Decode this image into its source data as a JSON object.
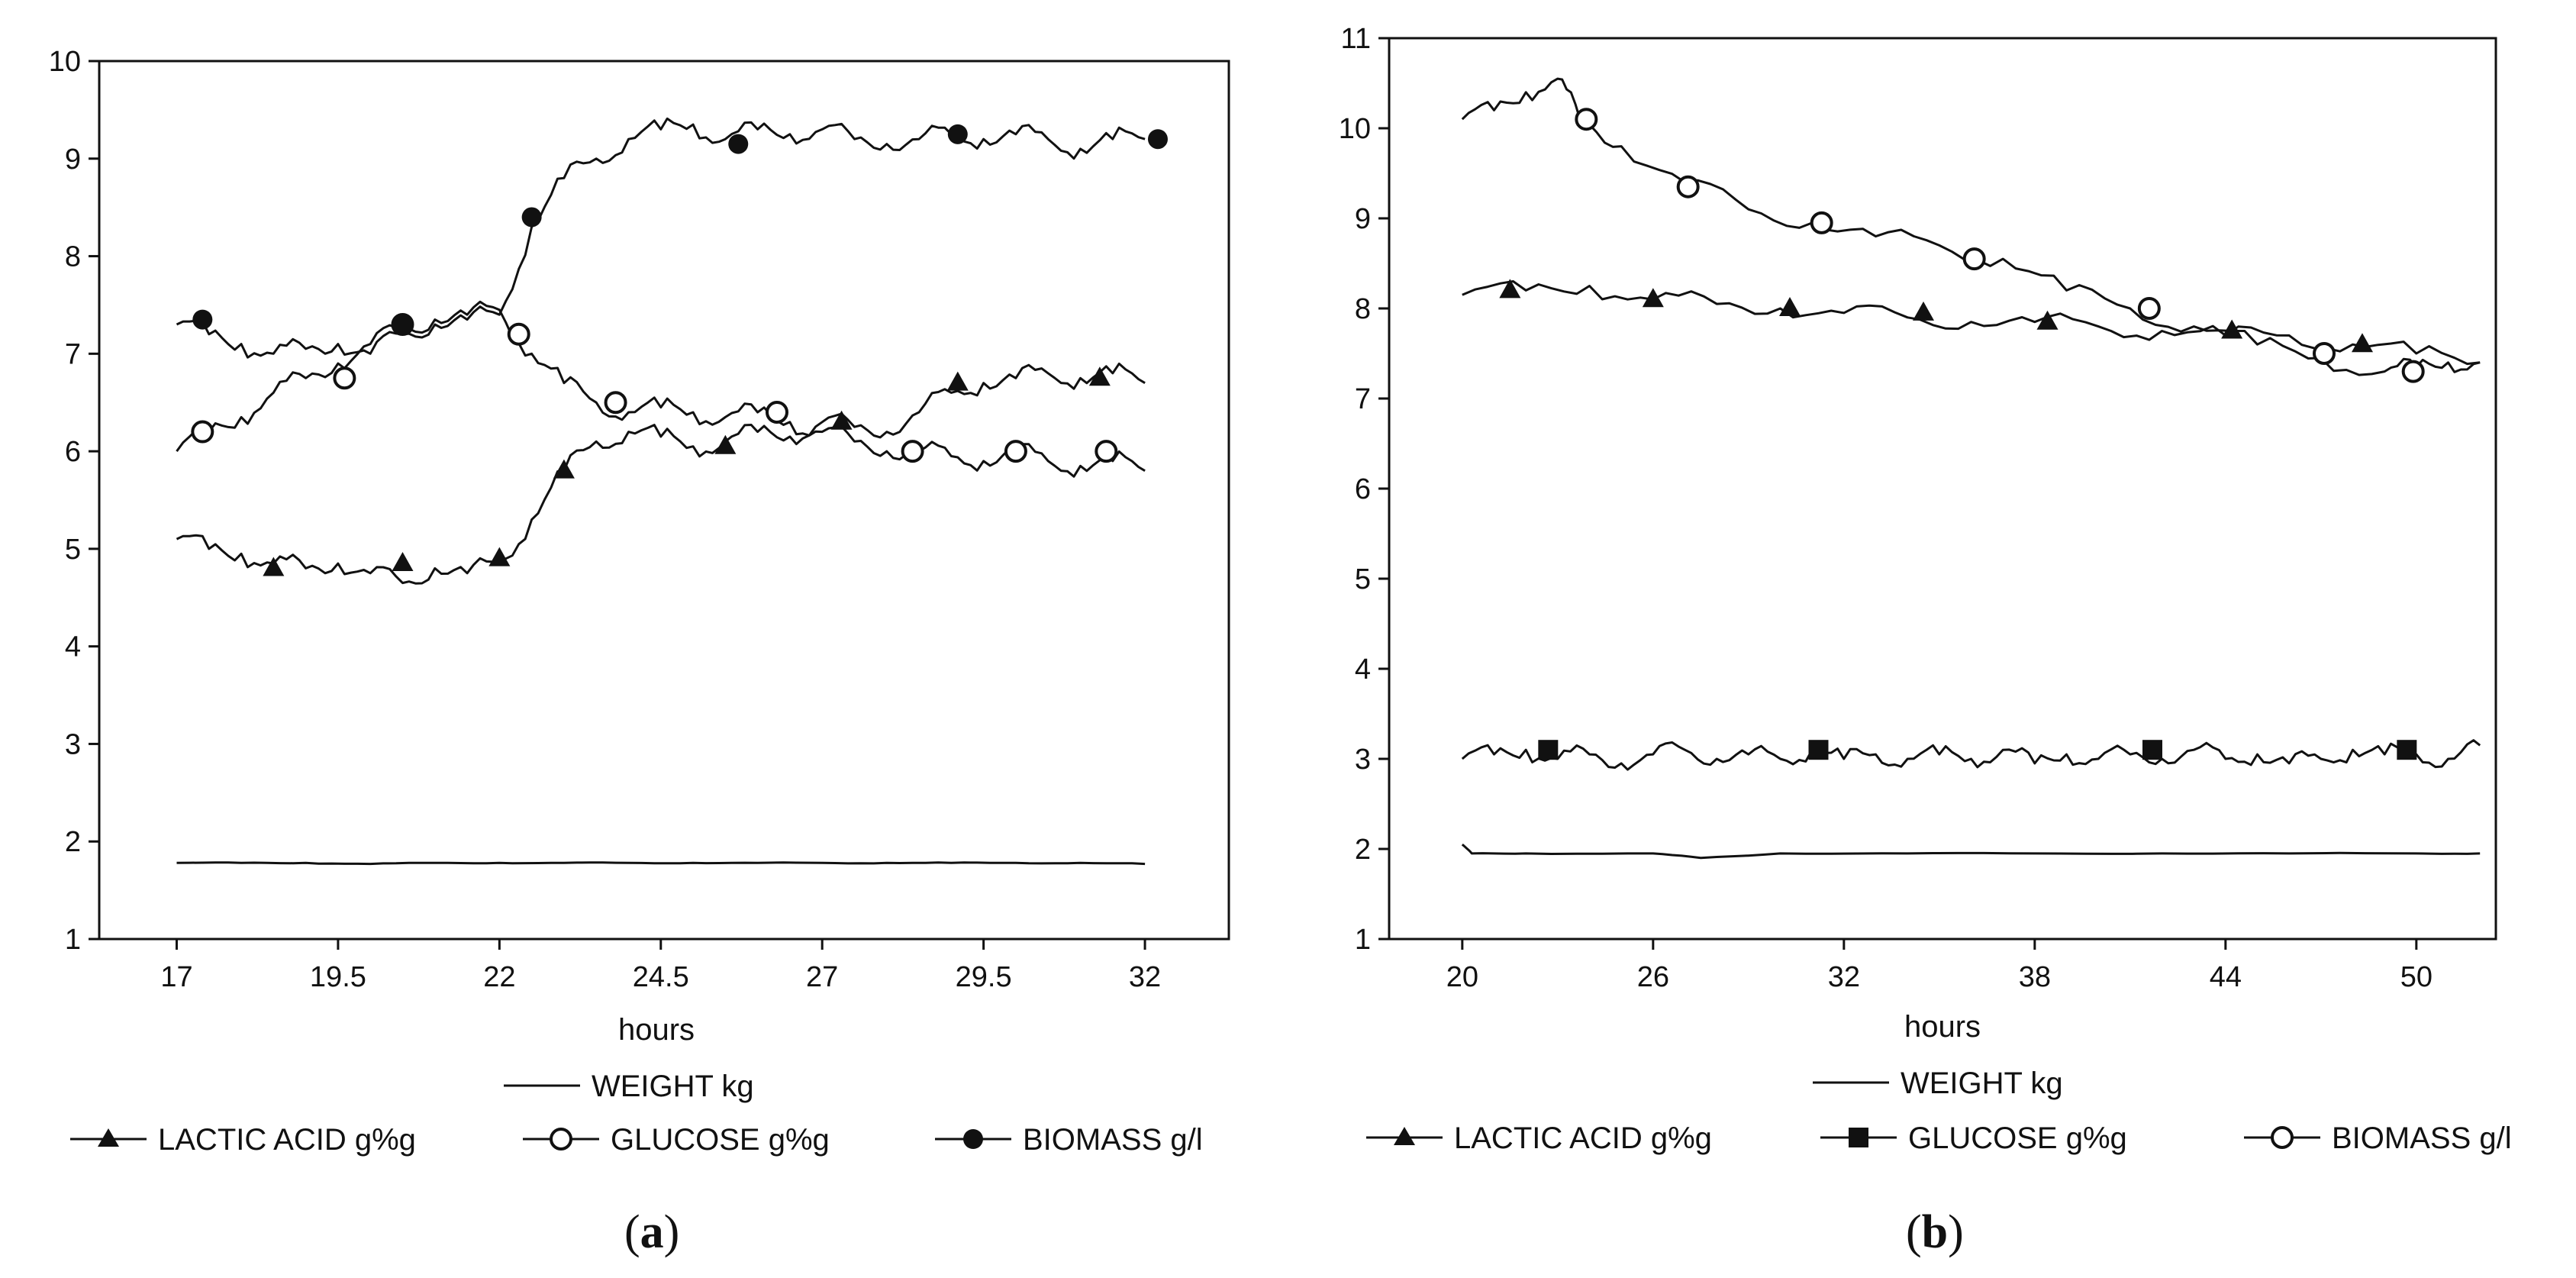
{
  "figure": {
    "panel_labels": {
      "a": "a",
      "b": "b"
    }
  },
  "chart_data": [
    {
      "type": "line",
      "panel": "a",
      "xlabel": "hours",
      "ylabel": "",
      "xlim": [
        15.8,
        33.3
      ],
      "ylim": [
        1,
        10
      ],
      "xticks": [
        17,
        19.5,
        22,
        24.5,
        27,
        29.5,
        32
      ],
      "xtick_labels": [
        "17",
        "19.5",
        "22",
        "24.5",
        "27",
        "29.5",
        "32"
      ],
      "yticks": [
        1,
        2,
        3,
        4,
        5,
        6,
        7,
        8,
        9,
        10
      ],
      "grid": false,
      "legend_placement": "bottom",
      "series": [
        {
          "key": "weight",
          "name": "WEIGHT kg",
          "color": "#111111",
          "marker": "none",
          "x": [
            17,
            18,
            19,
            20,
            21,
            22,
            23,
            24,
            25,
            26,
            27,
            28,
            29,
            30,
            31,
            32
          ],
          "y": [
            1.78,
            1.78,
            1.78,
            1.77,
            1.78,
            1.78,
            1.78,
            1.78,
            1.78,
            1.78,
            1.78,
            1.78,
            1.78,
            1.78,
            1.78,
            1.77
          ]
        },
        {
          "key": "lactic",
          "name": "LACTIC ACID g%g",
          "color": "#111111",
          "marker": "filled-triangle",
          "x": [
            17,
            17.5,
            18,
            18.5,
            19,
            19.5,
            20,
            20.5,
            21,
            21.5,
            22,
            22.5,
            23,
            23.5,
            24,
            24.5,
            25,
            25.5,
            26,
            26.5,
            27,
            27.5,
            28,
            28.5,
            29,
            29.5,
            30,
            30.5,
            31,
            31.5,
            32
          ],
          "y": [
            5.1,
            5.0,
            4.95,
            4.85,
            4.8,
            4.85,
            4.75,
            4.65,
            4.8,
            4.75,
            4.85,
            5.3,
            5.8,
            6.1,
            6.2,
            6.15,
            6.05,
            6.1,
            6.2,
            6.15,
            6.3,
            6.25,
            6.2,
            6.4,
            6.6,
            6.7,
            6.75,
            6.8,
            6.75,
            6.8,
            6.7
          ],
          "marker_points": {
            "x": [
              18.5,
              20.5,
              22,
              23,
              25.5,
              27.3,
              29.1,
              31.3
            ],
            "y": [
              4.8,
              4.85,
              4.9,
              5.8,
              6.05,
              6.3,
              6.7,
              6.75
            ]
          }
        },
        {
          "key": "glucose",
          "name": "GLUCOSE g%g",
          "color": "#111111",
          "marker": "open-circle",
          "x": [
            17,
            17.5,
            18,
            18.5,
            19,
            19.5,
            20,
            20.5,
            21,
            21.5,
            22,
            22.5,
            23,
            23.5,
            24,
            24.5,
            25,
            25.5,
            26,
            26.5,
            27,
            27.5,
            28,
            28.5,
            29,
            29.5,
            30,
            30.5,
            31,
            31.5,
            32
          ],
          "y": [
            6.0,
            6.2,
            6.35,
            6.6,
            6.75,
            6.9,
            7.1,
            7.25,
            7.35,
            7.4,
            7.45,
            7.0,
            6.7,
            6.5,
            6.4,
            6.45,
            6.4,
            6.35,
            6.4,
            6.3,
            6.2,
            6.1,
            6.0,
            6.0,
            5.95,
            5.9,
            6.0,
            5.9,
            5.85,
            5.9,
            5.8
          ],
          "marker_points": {
            "x": [
              17.4,
              19.6,
              20.5,
              22.3,
              23.8,
              26.3,
              28.4,
              30,
              31.4
            ],
            "y": [
              6.2,
              6.75,
              7.3,
              7.2,
              6.5,
              6.4,
              6.0,
              6.0,
              6.0
            ]
          }
        },
        {
          "key": "biomass",
          "name": "BIOMASS g/l",
          "color": "#111111",
          "marker": "filled-circle",
          "x": [
            17,
            17.5,
            18,
            18.5,
            19,
            19.5,
            20,
            20.5,
            21,
            21.5,
            22,
            22.5,
            23,
            23.5,
            24,
            24.5,
            25,
            25.5,
            26,
            26.5,
            27,
            27.5,
            28,
            28.5,
            29,
            29.5,
            30,
            30.5,
            31,
            31.5,
            32
          ],
          "y": [
            7.3,
            7.2,
            7.1,
            7.0,
            7.05,
            7.1,
            7.0,
            7.2,
            7.3,
            7.35,
            7.4,
            8.3,
            8.8,
            9.0,
            9.2,
            9.3,
            9.35,
            9.2,
            9.3,
            9.25,
            9.3,
            9.2,
            9.15,
            9.2,
            9.25,
            9.2,
            9.25,
            9.2,
            9.1,
            9.2,
            9.2
          ],
          "marker_points": {
            "x": [
              17.4,
              20.5,
              22.5,
              25.7,
              29.1,
              32.2
            ],
            "y": [
              7.35,
              7.3,
              8.4,
              9.15,
              9.25,
              9.2
            ]
          }
        }
      ]
    },
    {
      "type": "line",
      "panel": "b",
      "xlabel": "hours",
      "ylabel": "",
      "xlim": [
        17.7,
        52.5
      ],
      "ylim": [
        1,
        11
      ],
      "xticks": [
        20,
        26,
        32,
        38,
        44,
        50
      ],
      "xtick_labels": [
        "20",
        "26",
        "32",
        "38",
        "44",
        "50"
      ],
      "yticks": [
        1,
        2,
        3,
        4,
        5,
        6,
        7,
        8,
        9,
        10,
        11
      ],
      "grid": false,
      "legend_placement": "bottom",
      "series": [
        {
          "key": "weight",
          "name": "WEIGHT kg",
          "color": "#111111",
          "marker": "none",
          "x": [
            20,
            20.3,
            22,
            26,
            27.5,
            30,
            34,
            38,
            42,
            46,
            50,
            52
          ],
          "y": [
            2.05,
            1.95,
            1.95,
            1.95,
            1.9,
            1.95,
            1.95,
            1.95,
            1.95,
            1.95,
            1.95,
            1.95
          ]
        },
        {
          "key": "glucose",
          "name": "GLUCOSE g%g",
          "color": "#111111",
          "marker": "filled-square",
          "x": [
            20,
            21,
            22,
            23,
            24,
            25,
            26,
            27,
            28,
            29,
            30,
            31,
            32,
            33,
            34,
            35,
            36,
            37,
            38,
            39,
            40,
            41,
            42,
            43,
            44,
            45,
            46,
            47,
            48,
            49,
            50,
            51,
            52
          ],
          "y": [
            3.0,
            3.05,
            3.1,
            3.0,
            3.05,
            2.95,
            3.05,
            3.1,
            3.0,
            3.05,
            3.0,
            3.1,
            3.0,
            3.05,
            3.0,
            3.05,
            3.0,
            3.1,
            2.95,
            3.05,
            3.0,
            3.05,
            3.0,
            3.1,
            3.0,
            3.05,
            2.95,
            3.0,
            3.1,
            3.05,
            3.05,
            3.0,
            3.15
          ],
          "marker_points": {
            "x": [
              22.7,
              31.2,
              41.7,
              49.7
            ],
            "y": [
              3.1,
              3.1,
              3.1,
              3.1
            ]
          }
        },
        {
          "key": "lactic",
          "name": "LACTIC ACID g%g",
          "color": "#111111",
          "marker": "filled-triangle",
          "x": [
            20,
            22,
            24,
            26,
            28,
            30,
            32,
            34,
            36,
            38,
            40,
            42,
            44,
            46,
            48,
            50,
            52
          ],
          "y": [
            8.15,
            8.2,
            8.25,
            8.1,
            8.05,
            8.0,
            7.95,
            7.9,
            7.85,
            7.85,
            7.8,
            7.75,
            7.7,
            7.7,
            7.6,
            7.5,
            7.4
          ],
          "marker_points": {
            "x": [
              21.5,
              26,
              30.3,
              34.5,
              38.4,
              44.2,
              48.3
            ],
            "y": [
              8.2,
              8.1,
              8.0,
              7.95,
              7.85,
              7.75,
              7.6
            ]
          }
        },
        {
          "key": "biomass",
          "name": "BIOMASS g/l",
          "color": "#111111",
          "marker": "open-circle",
          "x": [
            20,
            21,
            22,
            23,
            23.7,
            25,
            27,
            29,
            31,
            33,
            35,
            37,
            39,
            41,
            43,
            45,
            47,
            49,
            50,
            51,
            52
          ],
          "y": [
            10.1,
            10.2,
            10.4,
            10.55,
            10.1,
            9.8,
            9.4,
            9.1,
            8.95,
            8.8,
            8.7,
            8.55,
            8.2,
            8.0,
            7.8,
            7.6,
            7.45,
            7.3,
            7.35,
            7.4,
            7.4
          ],
          "marker_points": {
            "x": [
              23.9,
              27.1,
              31.3,
              36.1,
              41.6,
              47.1,
              49.9
            ],
            "y": [
              10.1,
              9.35,
              8.95,
              8.55,
              8.0,
              7.5,
              7.3
            ]
          }
        }
      ]
    }
  ]
}
